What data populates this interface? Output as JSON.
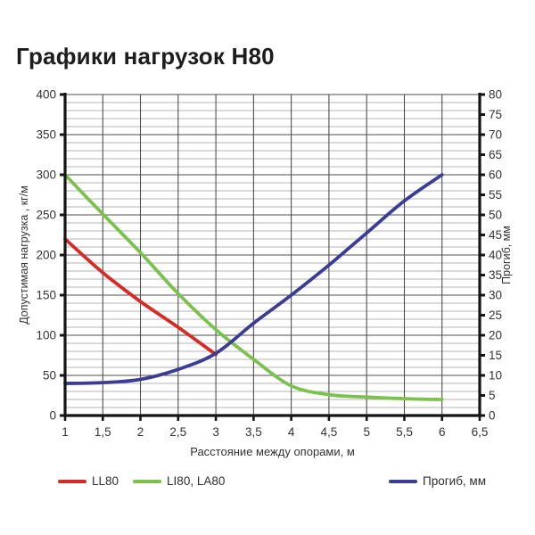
{
  "title": "Графики нагрузок Н80",
  "legend": [
    {
      "label": "LL80",
      "color": "#d62a24",
      "swatch": "red-line"
    },
    {
      "label": "LI80, LA80",
      "color": "#7cc14e",
      "swatch": "green-line"
    },
    {
      "label": "Прогиб, мм",
      "color": "#3b3c95",
      "swatch": "blue-line"
    }
  ],
  "chart_data": {
    "type": "line",
    "title": "Графики нагрузок Н80",
    "xlabel": "Расстояние между опорами, м",
    "x_axis": {
      "min": 1,
      "max": 6.5,
      "tick_values": [
        1,
        1.5,
        2,
        2.5,
        3,
        3.5,
        4,
        4.5,
        5,
        5.5,
        6,
        6.5
      ],
      "tick_labels": [
        "1",
        "1,5",
        "2",
        "2,5",
        "3",
        "3,5",
        "4",
        "4,5",
        "5",
        "5,5",
        "6",
        "6,5"
      ]
    },
    "y_axis_left": {
      "label": "Допустимая нагрузка , кг/м",
      "min": 0,
      "max": 400,
      "major_step": 50,
      "minor_step": 10,
      "tick_values": [
        0,
        50,
        100,
        150,
        200,
        250,
        300,
        350,
        400
      ]
    },
    "y_axis_right": {
      "label": "Прогиб, мм",
      "min": 0,
      "max": 80,
      "major_step": 5,
      "tick_values": [
        0,
        5,
        10,
        15,
        20,
        25,
        30,
        35,
        40,
        45,
        50,
        55,
        60,
        65,
        70,
        75,
        80
      ]
    },
    "grid": {
      "on": true,
      "minor_color": "#b4b4b4",
      "major_color": "#4f4f4f",
      "axis_color": "#161616",
      "text_color": "#333333"
    },
    "legend_position": "bottom",
    "series": [
      {
        "name": "LI80, LA80",
        "axis": "left",
        "color": "#7cc14e",
        "points": [
          [
            1,
            300
          ],
          [
            1.5,
            251
          ],
          [
            2,
            203
          ],
          [
            2.5,
            152
          ],
          [
            3,
            107
          ],
          [
            3.5,
            70
          ],
          [
            4,
            37
          ],
          [
            4.5,
            26
          ],
          [
            5,
            23
          ],
          [
            5.5,
            21
          ],
          [
            6,
            20
          ]
        ]
      },
      {
        "name": "LL80",
        "axis": "left",
        "color": "#d62a24",
        "points": [
          [
            1,
            220
          ],
          [
            1.5,
            178
          ],
          [
            2,
            142
          ],
          [
            2.5,
            110
          ],
          [
            3,
            76
          ]
        ]
      },
      {
        "name": "Прогиб, мм",
        "axis": "right",
        "color": "#3b3c95",
        "points": [
          [
            1,
            8
          ],
          [
            1.5,
            8.2
          ],
          [
            2,
            9
          ],
          [
            2.5,
            11.5
          ],
          [
            3,
            15.5
          ],
          [
            3.5,
            23
          ],
          [
            4,
            30
          ],
          [
            4.5,
            37.5
          ],
          [
            5,
            45.5
          ],
          [
            5.5,
            53.5
          ],
          [
            6,
            60
          ]
        ]
      }
    ]
  }
}
